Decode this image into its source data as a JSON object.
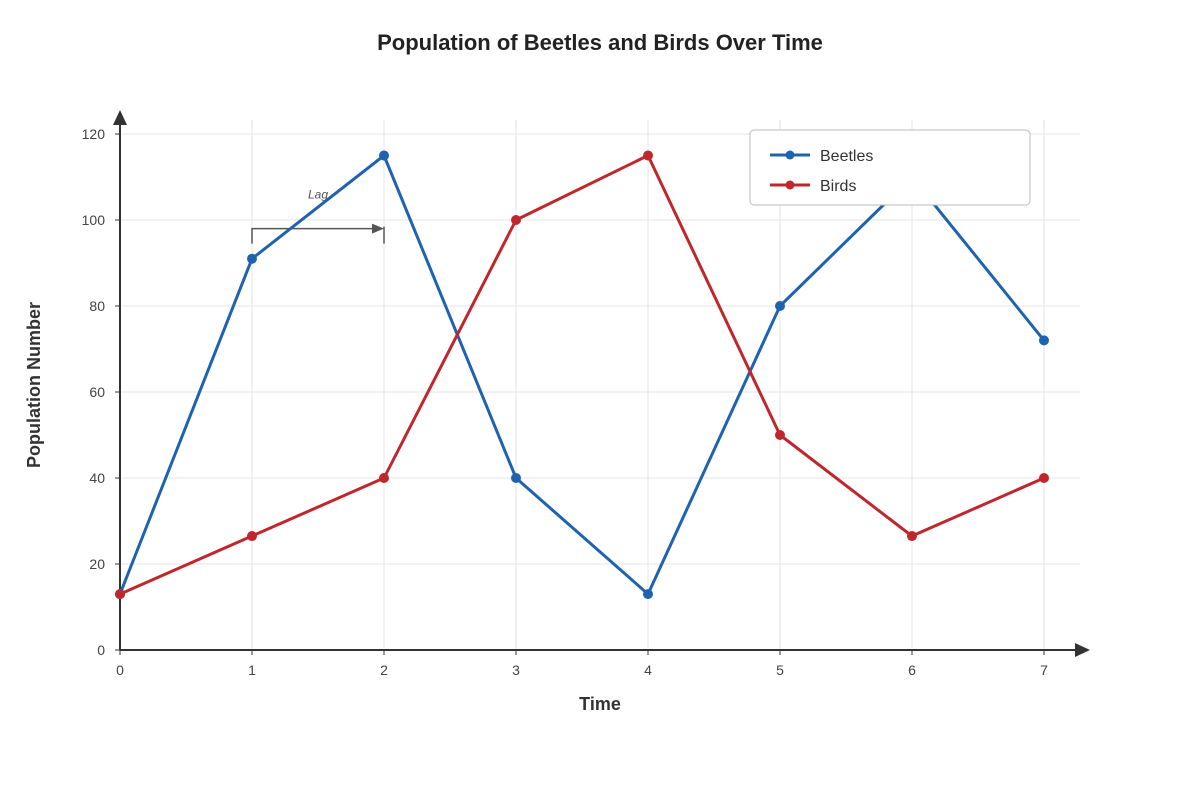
{
  "chart_data": {
    "type": "line",
    "title": "Population of Beetles and Birds Over Time",
    "xlabel": "Time",
    "ylabel": "Population Number",
    "x": [
      0,
      1,
      2,
      3,
      4,
      5,
      6,
      7
    ],
    "xlim": [
      0,
      7
    ],
    "ylim": [
      0,
      120
    ],
    "x_ticks": [
      "0",
      "1",
      "2",
      "3",
      "4",
      "5",
      "6",
      "7"
    ],
    "y_ticks": [
      "0",
      "20",
      "40",
      "60",
      "80",
      "100",
      "120"
    ],
    "grid": true,
    "legend_position": "top-right",
    "series": [
      {
        "name": "Beetles",
        "color": "#1f63b0",
        "values": [
          13,
          91,
          115,
          40,
          13,
          80,
          110,
          72
        ]
      },
      {
        "name": "Birds",
        "color": "#c0272d",
        "values": [
          13,
          26.5,
          40,
          100,
          115,
          50,
          26.5,
          40
        ]
      }
    ],
    "annotations": [
      {
        "text": "Lag",
        "x_start": 1,
        "x_end": 2,
        "y": 98
      }
    ]
  }
}
